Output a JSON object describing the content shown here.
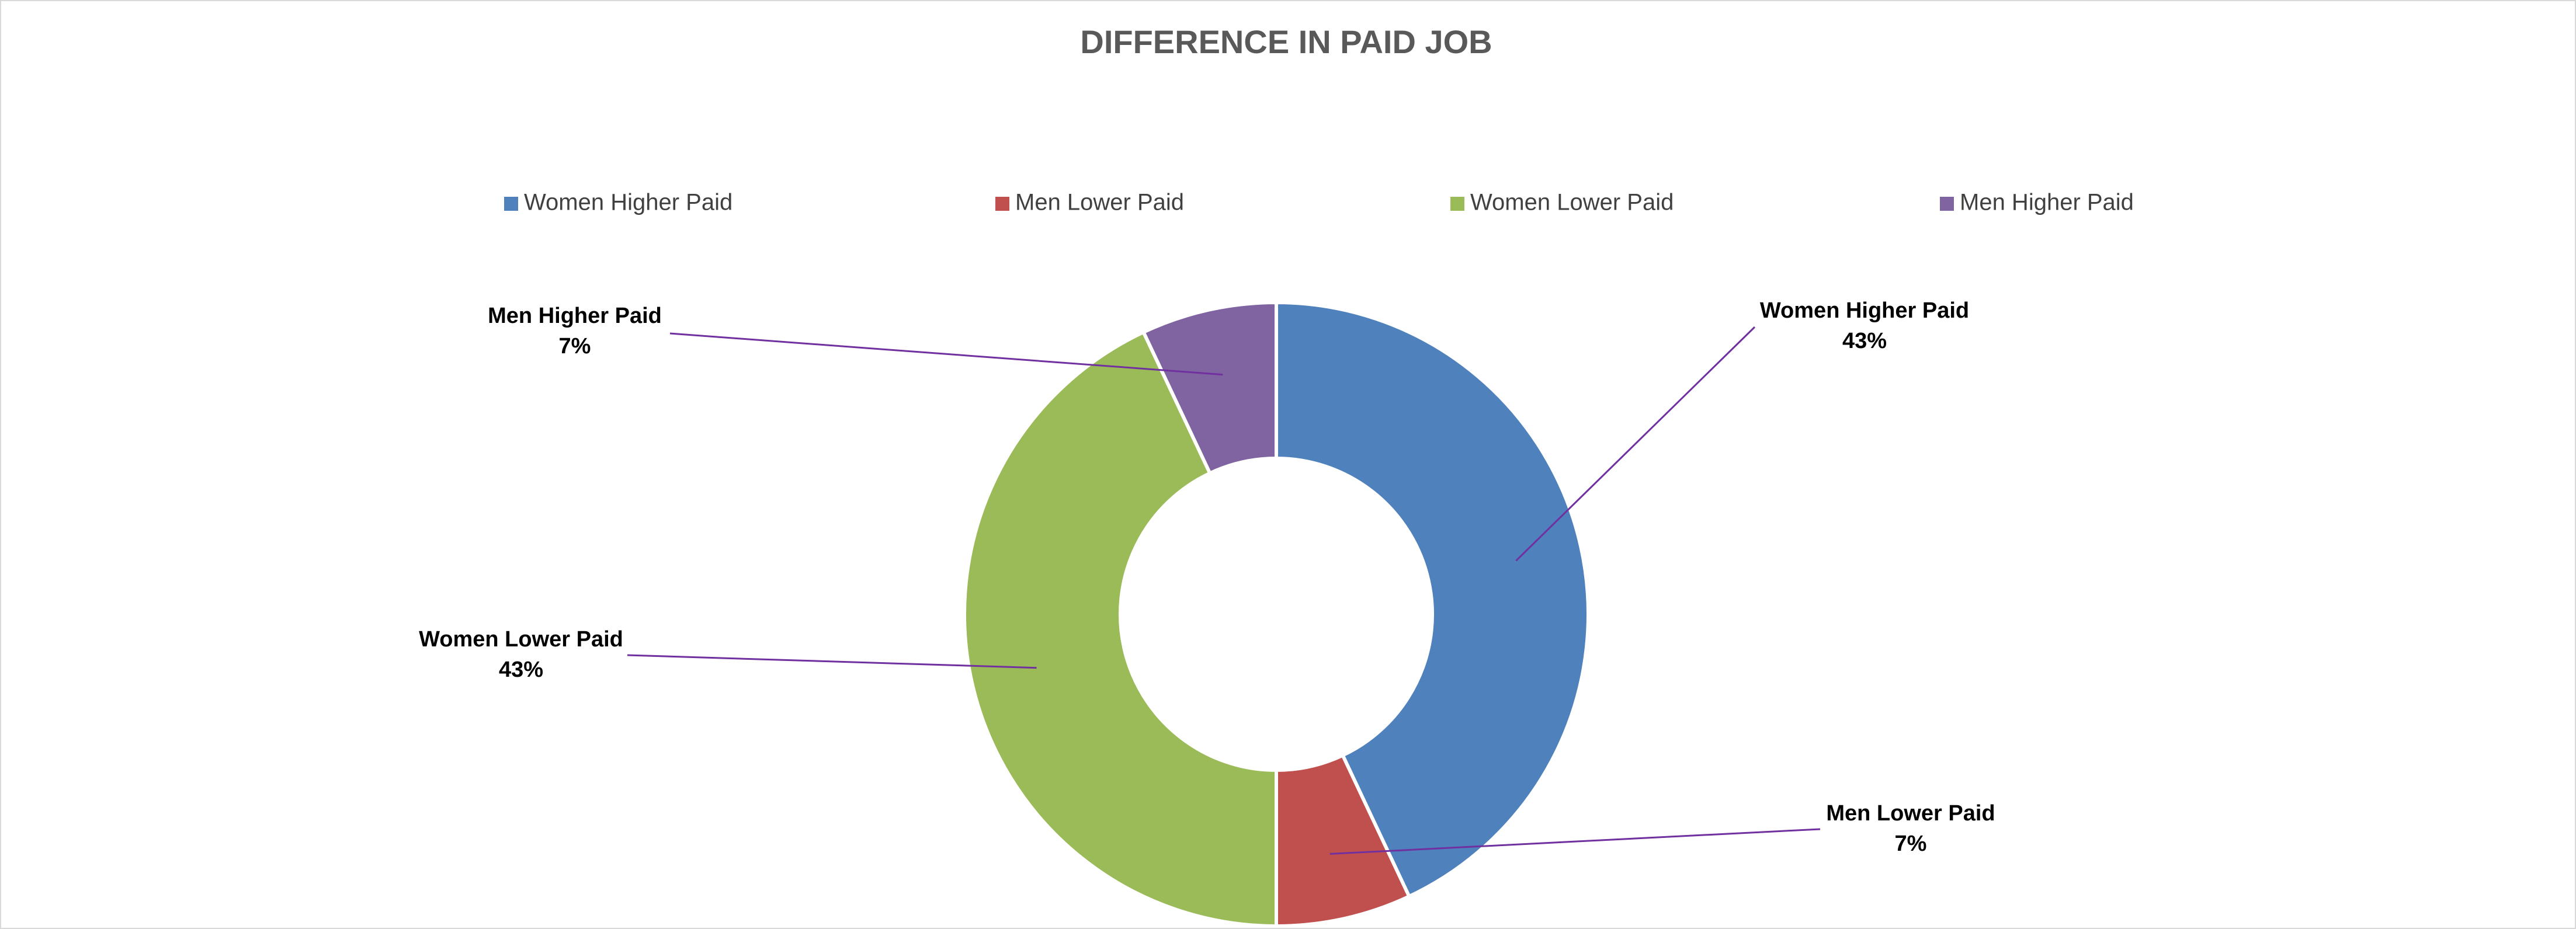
{
  "chart_data": {
    "type": "donut",
    "title": "DIFFERENCE IN PAID JOB",
    "categories": [
      "Women Higher Paid",
      "Men Lower Paid",
      "Women Lower Paid",
      "Men Higher Paid"
    ],
    "values": [
      43,
      7,
      43,
      7
    ],
    "value_labels": [
      "43%",
      "7%",
      "43%",
      "7%"
    ],
    "colors": [
      "#4f81bd",
      "#c0504d",
      "#9bbb59",
      "#8064a2"
    ],
    "legend": "top"
  }
}
